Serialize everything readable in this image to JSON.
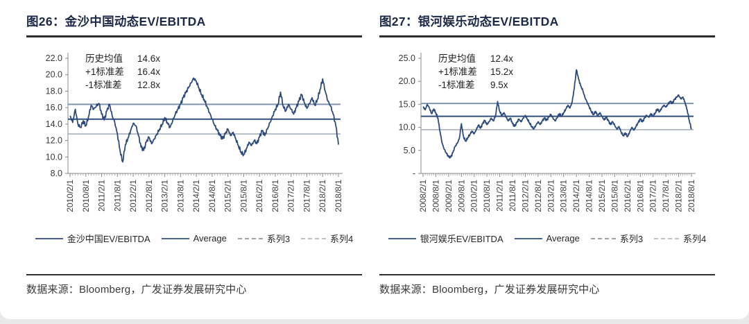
{
  "panels": [
    {
      "title": "图26：金沙中国动态EV/EBITDA",
      "source": "数据来源：Bloomberg，广发证券发展研究中心",
      "legend": [
        {
          "label": "金沙中国EV/EBITDA",
          "style": "solid"
        },
        {
          "label": "Average",
          "style": "solid2"
        },
        {
          "label": "系列3",
          "style": "dashed"
        },
        {
          "label": "系列4",
          "style": "dashed-light"
        }
      ]
    },
    {
      "title": "图27：银河娱乐动态EV/EBITDA",
      "source": "数据来源：Bloomberg，广发证券发展研究中心",
      "legend": [
        {
          "label": "银河娱乐EV/EBITDA",
          "style": "solid"
        },
        {
          "label": "Average",
          "style": "solid2"
        },
        {
          "label": "系列3",
          "style": "dashed"
        },
        {
          "label": "系列4",
          "style": "dashed-light"
        }
      ]
    }
  ],
  "chart_data": [
    {
      "type": "line",
      "title": "金沙中国动态EV/EBITDA",
      "ylim": [
        8,
        22
      ],
      "yticks": [
        22,
        20,
        18,
        16,
        14,
        12,
        10,
        8
      ],
      "ytick_labels": [
        "22.0",
        "20.0",
        "18.0",
        "16.0",
        "14.0",
        "12.0",
        "10.0",
        "8.0"
      ],
      "mean": 14.6,
      "plus1sd": 16.4,
      "minus1sd": 12.8,
      "annotations": [
        [
          "历史均值",
          "14.6x"
        ],
        [
          "+1标准差",
          "16.4x"
        ],
        [
          "-1标准差",
          "12.8x"
        ]
      ],
      "x_start": "2010/2/1",
      "x_tick_every_months": 6,
      "x_tick_labels": [
        "2010/2/1",
        "2010/8/1",
        "2011/2/1",
        "2011/8/1",
        "2012/2/1",
        "2012/8/1",
        "2013/2/1",
        "2013/8/1",
        "2014/2/1",
        "2014/8/1",
        "2015/2/1",
        "2015/8/1",
        "2016/2/1",
        "2016/8/1",
        "2017/2/1",
        "2017/8/1",
        "2018/2/1",
        "2018/8/1"
      ],
      "series": [
        {
          "name": "金沙中国EV/EBITDA",
          "values": [
            15.0,
            14.2,
            15.8,
            14.0,
            13.6,
            14.4,
            13.8,
            14.9,
            16.3,
            15.8,
            16.2,
            16.5,
            15.2,
            14.5,
            15.6,
            16.4,
            15.0,
            14.2,
            12.8,
            10.8,
            9.4,
            11.5,
            12.3,
            13.2,
            14.1,
            13.8,
            12.6,
            11.2,
            10.8,
            11.8,
            12.4,
            11.6,
            12.2,
            12.8,
            13.4,
            14.0,
            14.8,
            14.2,
            13.6,
            14.4,
            15.2,
            15.8,
            16.4,
            17.2,
            17.8,
            18.4,
            19.0,
            19.6,
            19.2,
            18.4,
            17.6,
            17.0,
            16.2,
            15.4,
            14.6,
            13.8,
            13.2,
            12.6,
            12.2,
            12.8,
            13.4,
            12.6,
            13.0,
            12.2,
            11.4,
            10.6,
            10.3,
            11.0,
            11.8,
            11.4,
            12.0,
            11.6,
            12.4,
            13.2,
            12.6,
            13.4,
            14.2,
            15.0,
            15.8,
            16.4,
            17.9,
            16.2,
            15.6,
            16.4,
            15.8,
            15.2,
            16.0,
            16.8,
            17.6,
            16.6,
            15.9,
            16.5,
            17.2,
            16.3,
            17.0,
            18.2,
            19.5,
            18.0,
            16.8,
            16.2,
            15.2,
            13.8,
            11.5
          ]
        },
        {
          "name": "Average",
          "constant": 14.6
        },
        {
          "name": "系列3",
          "constant": 16.4
        },
        {
          "name": "系列4",
          "constant": 12.8
        }
      ]
    },
    {
      "type": "line",
      "title": "银河娱乐动态EV/EBITDA",
      "ylim": [
        0,
        25
      ],
      "yticks": [
        25,
        20,
        15,
        10,
        5,
        0
      ],
      "ytick_labels": [
        "25.0",
        "20.0",
        "15.0",
        "10.0",
        "5.0",
        "-"
      ],
      "mean": 12.4,
      "plus1sd": 15.2,
      "minus1sd": 9.5,
      "annotations": [
        [
          "历史均值",
          "12.4x"
        ],
        [
          "+1标准差",
          "15.2x"
        ],
        [
          "-1标准差",
          "9.5x"
        ]
      ],
      "x_start": "2008/2/1",
      "x_tick_every_months": 6,
      "x_tick_labels": [
        "2008/2/1",
        "2008/8/1",
        "2009/2/1",
        "2009/8/1",
        "2010/2/1",
        "2010/8/1",
        "2011/2/1",
        "2011/8/1",
        "2012/2/1",
        "2012/8/1",
        "2013/2/1",
        "2013/8/1",
        "2014/2/1",
        "2014/8/1",
        "2015/2/1",
        "2015/8/1",
        "2016/2/1",
        "2016/8/1",
        "2017/2/1",
        "2017/8/1",
        "2018/2/1",
        "2018/8/1"
      ],
      "series": [
        {
          "name": "银河娱乐EV/EBITDA",
          "values": [
            14.5,
            13.8,
            15.0,
            14.2,
            13.0,
            14.0,
            13.2,
            12.0,
            9.0,
            6.5,
            5.2,
            4.3,
            3.6,
            3.5,
            4.5,
            5.8,
            6.5,
            7.5,
            10.8,
            8.0,
            7.0,
            7.8,
            8.5,
            9.2,
            8.6,
            9.5,
            10.5,
            9.8,
            10.8,
            11.5,
            10.6,
            11.2,
            12.0,
            11.4,
            12.5,
            15.6,
            13.5,
            12.6,
            13.2,
            12.2,
            11.4,
            12.0,
            10.8,
            10.2,
            11.0,
            11.8,
            11.2,
            12.0,
            12.6,
            11.8,
            11.0,
            10.2,
            9.7,
            10.5,
            11.2,
            10.6,
            11.4,
            12.0,
            11.5,
            12.2,
            12.8,
            12.0,
            11.4,
            12.2,
            13.0,
            12.4,
            13.2,
            14.0,
            14.8,
            14.2,
            15.5,
            18.5,
            22.5,
            20.5,
            19.0,
            18.0,
            16.5,
            15.5,
            14.5,
            13.5,
            12.8,
            13.5,
            12.5,
            13.2,
            12.4,
            11.6,
            12.2,
            11.4,
            10.6,
            11.2,
            10.4,
            9.6,
            10.2,
            9.0,
            8.2,
            8.8,
            8.0,
            9.0,
            10.0,
            9.4,
            10.2,
            11.0,
            11.8,
            11.2,
            12.0,
            12.6,
            12.2,
            13.0,
            12.4,
            13.2,
            14.0,
            13.4,
            14.2,
            14.8,
            14.4,
            15.0,
            15.6,
            15.2,
            16.0,
            16.5,
            17.0,
            16.2,
            16.6,
            15.4,
            13.8,
            11.5,
            9.6
          ]
        },
        {
          "name": "Average",
          "constant": 12.4
        },
        {
          "name": "系列3",
          "constant": 15.2
        },
        {
          "name": "系列4",
          "constant": 9.5
        }
      ]
    }
  ],
  "colors": {
    "title": "#1c2947",
    "series_line": "#2e4a7c",
    "mean_line": "#30507f",
    "plus1sd_line": "#8094ae",
    "minus1sd_line": "#a8b0bc",
    "axis": "#8a8a8a"
  }
}
